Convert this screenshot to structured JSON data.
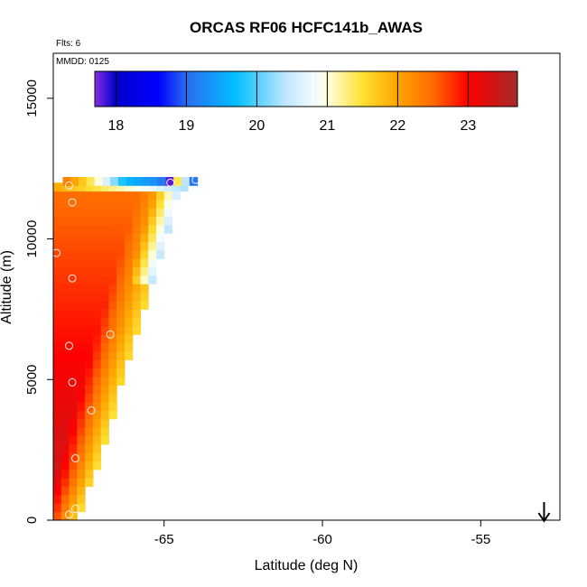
{
  "chart_data": {
    "type": "heatmap",
    "title": "ORCAS RF06 HCFC141b_AWAS",
    "flights_label": "Flts: 6",
    "date_label": "MMDD: 0125",
    "xlabel": "Latitude (deg N)",
    "ylabel": "Altitude (m)",
    "xlim": [
      -68.5,
      -52.5
    ],
    "ylim": [
      0,
      16600
    ],
    "x_ticks": [
      -65,
      -60,
      -55
    ],
    "x_tick_labels": [
      "-65",
      "-60",
      "-55"
    ],
    "y_ticks": [
      0,
      5000,
      10000,
      15000
    ],
    "y_tick_labels": [
      "0",
      "5000",
      "10000",
      "15000"
    ],
    "colorbar": {
      "range": [
        17.7,
        23.7
      ],
      "ticks": [
        18,
        19,
        20,
        21,
        22,
        23
      ],
      "tick_labels": [
        "18",
        "19",
        "20",
        "21",
        "22",
        "23"
      ],
      "stops": [
        {
          "v": 17.7,
          "c": "#8a2be2"
        },
        {
          "v": 18.0,
          "c": "#0000c8"
        },
        {
          "v": 18.6,
          "c": "#0000ff"
        },
        {
          "v": 19.0,
          "c": "#2a6cf0"
        },
        {
          "v": 19.7,
          "c": "#00bfff"
        },
        {
          "v": 20.4,
          "c": "#bfe6ff"
        },
        {
          "v": 20.8,
          "c": "#f2fbff"
        },
        {
          "v": 21.0,
          "c": "#ffffe0"
        },
        {
          "v": 21.5,
          "c": "#ffe033"
        },
        {
          "v": 22.0,
          "c": "#ffa500"
        },
        {
          "v": 22.5,
          "c": "#ff6a00"
        },
        {
          "v": 23.0,
          "c": "#ff0000"
        },
        {
          "v": 23.7,
          "c": "#a52a2a"
        }
      ]
    },
    "cell_size": {
      "lat": 0.25,
      "alt": 300
    },
    "samples": [
      {
        "lat": -68.0,
        "alt": 11900
      },
      {
        "lat": -67.9,
        "alt": 11300
      },
      {
        "lat": -68.4,
        "alt": 9500
      },
      {
        "lat": -67.9,
        "alt": 8600
      },
      {
        "lat": -68.0,
        "alt": 6200
      },
      {
        "lat": -66.7,
        "alt": 6600
      },
      {
        "lat": -67.9,
        "alt": 4900
      },
      {
        "lat": -67.3,
        "alt": 3900
      },
      {
        "lat": -67.8,
        "alt": 2200
      },
      {
        "lat": -67.8,
        "alt": 400
      },
      {
        "lat": -68.0,
        "alt": 200
      },
      {
        "lat": -64.8,
        "alt": 12000
      },
      {
        "lat": -64.0,
        "alt": 12100
      }
    ],
    "arrow": {
      "lat": -53.0,
      "direction": "down"
    }
  }
}
